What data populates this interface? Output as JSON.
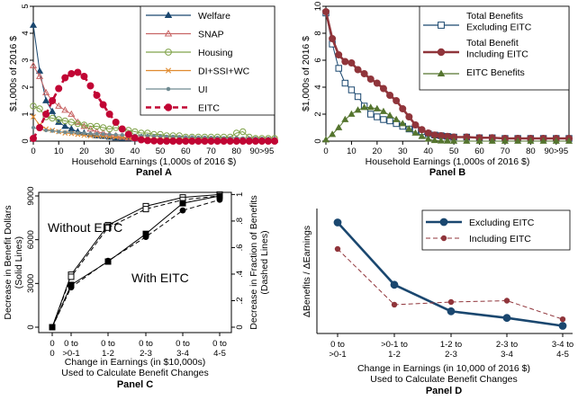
{
  "chart_data": [
    {
      "id": "A",
      "type": "line",
      "title": "Panel A",
      "xlabel": "Household Earnings (1,000s of 2016 $)",
      "ylabel": "$1,000s of 2016 $",
      "xlim": [
        0,
        95
      ],
      "ylim": [
        0,
        5
      ],
      "xticks": [
        0,
        10,
        20,
        30,
        40,
        50,
        60,
        70,
        80,
        90
      ],
      "xtick_labels": [
        "0",
        "10",
        "20",
        "30",
        "40",
        "50",
        "60",
        "70",
        "80",
        "90>95"
      ],
      "yticks": [
        0,
        1,
        2,
        3,
        4,
        5
      ],
      "legend_position": "top-right",
      "x": [
        0,
        2.5,
        5,
        7.5,
        10,
        12.5,
        15,
        17.5,
        20,
        22.5,
        25,
        27.5,
        30,
        32.5,
        35,
        37.5,
        40,
        42.5,
        45,
        47.5,
        50,
        52.5,
        55,
        57.5,
        60,
        62.5,
        65,
        67.5,
        70,
        72.5,
        75,
        77.5,
        80,
        82.5,
        85,
        87.5,
        90,
        92.5,
        95
      ],
      "series": [
        {
          "name": "Welfare",
          "color": "#1a476f",
          "dash": "solid",
          "marker": "triangle",
          "values": [
            4.3,
            2.6,
            1.5,
            1.1,
            0.7,
            0.55,
            0.45,
            0.35,
            0.3,
            0.25,
            0.2,
            0.18,
            0.15,
            0.12,
            0.1,
            0.1,
            0.08,
            0.08,
            0.07,
            0.06,
            0.05,
            0.05,
            0.04,
            0.04,
            0.04,
            0.03,
            0.03,
            0.03,
            0.03,
            0.03,
            0.03,
            0.03,
            0.03,
            0.03,
            0.03,
            0.03,
            0.03,
            0.03,
            0.03
          ]
        },
        {
          "name": "SNAP",
          "color": "#c86565",
          "dash": "solid",
          "marker": "hollow-triangle",
          "values": [
            2.8,
            2.4,
            1.8,
            1.5,
            1.3,
            1.15,
            1.0,
            0.7,
            0.55,
            0.45,
            0.35,
            0.3,
            0.25,
            0.2,
            0.15,
            0.12,
            0.1,
            0.08,
            0.07,
            0.06,
            0.05,
            0.05,
            0.04,
            0.04,
            0.04,
            0.03,
            0.03,
            0.03,
            0.03,
            0.03,
            0.03,
            0.03,
            0.03,
            0.03,
            0.03,
            0.03,
            0.03,
            0.03,
            0.03
          ]
        },
        {
          "name": "Housing",
          "color": "#80a34a",
          "dash": "solid",
          "marker": "hollow-circle",
          "values": [
            1.3,
            1.2,
            0.9,
            0.85,
            0.8,
            0.75,
            0.7,
            0.65,
            0.6,
            0.55,
            0.55,
            0.5,
            0.45,
            0.5,
            0.45,
            0.4,
            0.35,
            0.3,
            0.3,
            0.25,
            0.25,
            0.2,
            0.2,
            0.2,
            0.15,
            0.15,
            0.15,
            0.15,
            0.15,
            0.15,
            0.15,
            0.15,
            0.3,
            0.35,
            0.15,
            0.1,
            0.1,
            0.1,
            0.1
          ]
        },
        {
          "name": "DI+SSI+WC",
          "color": "#e08a2e",
          "dash": "solid",
          "marker": "x",
          "values": [
            0.9,
            0.6,
            0.45,
            0.4,
            0.35,
            0.3,
            0.28,
            0.25,
            0.22,
            0.2,
            0.2,
            0.18,
            0.16,
            0.15,
            0.14,
            0.13,
            0.12,
            0.11,
            0.1,
            0.1,
            0.09,
            0.09,
            0.08,
            0.08,
            0.08,
            0.07,
            0.07,
            0.07,
            0.07,
            0.06,
            0.06,
            0.06,
            0.06,
            0.06,
            0.06,
            0.06,
            0.06,
            0.06,
            0.06
          ]
        },
        {
          "name": "UI",
          "color": "#6f8a91",
          "dash": "solid",
          "marker": "dot",
          "values": [
            0.5,
            0.45,
            0.4,
            0.38,
            0.35,
            0.33,
            0.32,
            0.3,
            0.3,
            0.28,
            0.27,
            0.26,
            0.25,
            0.24,
            0.23,
            0.22,
            0.21,
            0.2,
            0.2,
            0.19,
            0.18,
            0.17,
            0.17,
            0.16,
            0.15,
            0.15,
            0.14,
            0.14,
            0.13,
            0.13,
            0.12,
            0.12,
            0.12,
            0.11,
            0.11,
            0.11,
            0.1,
            0.1,
            0.1
          ]
        },
        {
          "name": "EITC",
          "color": "#c10534",
          "dash": "dashed",
          "marker": "filled-circle",
          "bold": true,
          "values": [
            0.1,
            0.5,
            1.0,
            1.5,
            1.95,
            2.35,
            2.5,
            2.55,
            2.4,
            2.05,
            1.7,
            1.35,
            1.0,
            0.7,
            0.45,
            0.25,
            0.12,
            0.05,
            0.02,
            0.01,
            0,
            0,
            0,
            0,
            0,
            0,
            0,
            0,
            0,
            0,
            0,
            0,
            0,
            0,
            0,
            0,
            0,
            0,
            0
          ]
        }
      ]
    },
    {
      "id": "B",
      "type": "line",
      "title": "Panel B",
      "xlabel": "Household Earnings (1,000s of 2016 $)",
      "ylabel": "$1,000s of 2016 $",
      "xlim": [
        0,
        95
      ],
      "ylim": [
        0,
        10
      ],
      "xticks": [
        0,
        10,
        20,
        30,
        40,
        50,
        60,
        70,
        80,
        90
      ],
      "xtick_labels": [
        "0",
        "10",
        "20",
        "30",
        "40",
        "50",
        "60",
        "70",
        "80",
        "90>95"
      ],
      "yticks": [
        0,
        2,
        4,
        6,
        8,
        10
      ],
      "legend_position": "top-right",
      "x": [
        0,
        2.5,
        5,
        7.5,
        10,
        12.5,
        15,
        17.5,
        20,
        22.5,
        25,
        27.5,
        30,
        32.5,
        35,
        37.5,
        40,
        42.5,
        45,
        47.5,
        50,
        55,
        60,
        65,
        70,
        75,
        80,
        85,
        90,
        95
      ],
      "series": [
        {
          "name": "Total Benefits Excluding EITC",
          "color": "#1a476f",
          "dash": "solid",
          "marker": "hollow-square",
          "values": [
            9.5,
            7.2,
            5.4,
            4.3,
            3.8,
            3.3,
            2.6,
            2.0,
            1.8,
            1.6,
            1.5,
            1.3,
            1.1,
            0.9,
            0.8,
            0.7,
            0.55,
            0.45,
            0.4,
            0.35,
            0.3,
            0.3,
            0.25,
            0.25,
            0.2,
            0.2,
            0.2,
            0.2,
            0.2,
            0.2
          ]
        },
        {
          "name": "Total Benefit Including EITC",
          "color": "#90353b",
          "dash": "solid",
          "marker": "filled-circle",
          "bold": true,
          "values": [
            9.6,
            7.6,
            6.4,
            5.9,
            5.8,
            5.3,
            5.0,
            4.6,
            4.3,
            3.9,
            3.4,
            3.0,
            2.4,
            1.8,
            1.2,
            0.85,
            0.6,
            0.45,
            0.4,
            0.35,
            0.3,
            0.3,
            0.25,
            0.25,
            0.2,
            0.2,
            0.2,
            0.2,
            0.2,
            0.2
          ]
        },
        {
          "name": "EITC Benefits",
          "color": "#55752f",
          "dash": "solid",
          "marker": "filled-triangle",
          "values": [
            0.1,
            0.5,
            1.0,
            1.6,
            2.0,
            2.3,
            2.5,
            2.5,
            2.4,
            2.2,
            1.9,
            1.6,
            1.3,
            0.9,
            0.6,
            0.35,
            0.15,
            0.05,
            0.02,
            0.01,
            0,
            0,
            0,
            0,
            0,
            0,
            0,
            0,
            0,
            0
          ]
        }
      ]
    },
    {
      "id": "C",
      "type": "line",
      "title": "Panel C",
      "xlabel": "Change in Earnings (in $10,000s)",
      "xlabel2": "Used to Calculate Benefit Changes",
      "ylabel_left": [
        "Decrease in Benefit Dollars",
        "(Solid Lines)"
      ],
      "ylabel_right": [
        "Decrease in Fraction of Benefits",
        "(Dashed Lines)"
      ],
      "x_positions": [
        0,
        1,
        2,
        3,
        4,
        5
      ],
      "xtick_labels": [
        [
          "0",
          "0"
        ],
        [
          "0 to",
          ">0-1"
        ],
        [
          "0 to",
          "1-2"
        ],
        [
          "0 to",
          "2-3"
        ],
        [
          "0 to",
          "3-4"
        ],
        [
          "0 to",
          "4-5"
        ]
      ],
      "ylim": [
        0,
        9000
      ],
      "yticks": [
        0,
        3000,
        6000,
        9000
      ],
      "y2lim": [
        0,
        1
      ],
      "y2ticks": [
        0,
        0.2,
        0.4,
        0.6,
        0.8,
        1
      ],
      "y2tick_labels": [
        "0",
        ".2",
        ".4",
        ".6",
        ".8",
        "1"
      ],
      "annotations": [
        "Without EITC",
        "With EITC"
      ],
      "series": [
        {
          "name": "Without EITC (dollars)",
          "axis": "left",
          "dash": "solid",
          "marker": "hollow-square",
          "values": [
            0,
            3600,
            7000,
            8300,
            8900,
            9100
          ]
        },
        {
          "name": "Without EITC (fraction)",
          "axis": "right",
          "dash": "dashed",
          "marker": "hollow-square",
          "values": [
            0,
            0.38,
            0.75,
            0.89,
            0.96,
            0.99
          ]
        },
        {
          "name": "With EITC (dollars)",
          "axis": "left",
          "dash": "solid",
          "marker": "filled-square",
          "values": [
            0,
            2900,
            4500,
            6400,
            8500,
            9000
          ]
        },
        {
          "name": "With EITC (fraction)",
          "axis": "right",
          "dash": "dashed",
          "marker": "filled-circle",
          "values": [
            0,
            0.3,
            0.5,
            0.68,
            0.88,
            0.96
          ]
        }
      ]
    },
    {
      "id": "D",
      "type": "line",
      "title": "Panel D",
      "xlabel": "Change in Earnings (in 10,000 of 2016 $)",
      "xlabel2": "Used to Calculate Benefit Changes",
      "ylabel": "ΔBenefits / ΔEarnings",
      "x_positions": [
        0,
        1,
        2,
        3,
        4
      ],
      "xtick_labels": [
        [
          "0 to",
          ">0-1"
        ],
        [
          ">0-1 to",
          "1-2"
        ],
        [
          "1-2 to",
          "2-3"
        ],
        [
          "2-3 to",
          "3-4"
        ],
        [
          "3-4 to",
          "4-5"
        ]
      ],
      "ylim": [
        0,
        0.8
      ],
      "legend_position": "top-right",
      "series": [
        {
          "name": "Excluding EITC",
          "color": "#1a476f",
          "dash": "solid",
          "marker": "filled-circle",
          "bold": true,
          "values": [
            0.79,
            0.32,
            0.12,
            0.07,
            0.01
          ]
        },
        {
          "name": "Including EITC",
          "color": "#90353b",
          "dash": "dashed",
          "marker": "filled-circle",
          "values": [
            0.59,
            0.17,
            0.19,
            0.2,
            0.06
          ]
        }
      ]
    }
  ]
}
